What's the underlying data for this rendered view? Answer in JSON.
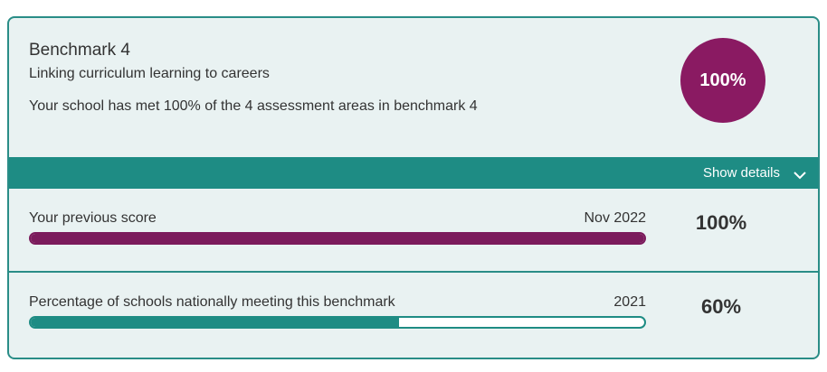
{
  "header": {
    "title": "Benchmark 4",
    "subtitle": "Linking curriculum learning to careers",
    "description": "Your school has met 100% of the 4 assessment areas in benchmark 4",
    "badge": "100%"
  },
  "toggle": "Show details",
  "rows": [
    {
      "label": "Your previous score",
      "date": "Nov 2022",
      "value": 100,
      "value_label": "100%",
      "color": "#7b1b5c"
    },
    {
      "label": "Percentage of schools nationally meeting this benchmark",
      "date": "2021",
      "value": 60,
      "value_label": "60%",
      "color": "#1e8c84"
    }
  ]
}
